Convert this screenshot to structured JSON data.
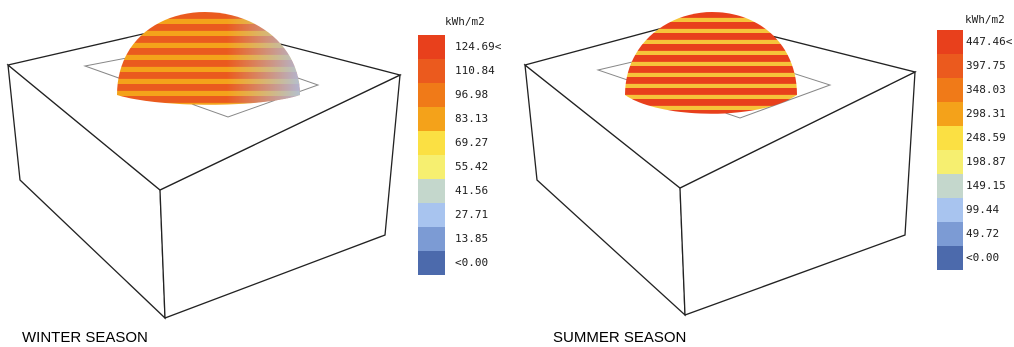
{
  "panels": [
    {
      "unit": "kWh/m2",
      "labels": [
        "124.69<",
        "110.84",
        "96.98",
        "83.13",
        "69.27",
        "55.42",
        "41.56",
        "27.71",
        "13.85",
        "<0.00"
      ],
      "caption": "WINTER SEASON"
    },
    {
      "unit": "kWh/m2",
      "labels": [
        "447.46<",
        "397.75",
        "348.03",
        "298.31",
        "248.59",
        "198.87",
        "149.15",
        "99.44",
        "49.72",
        "<0.00"
      ],
      "caption": "SUMMER SEASON"
    }
  ]
}
